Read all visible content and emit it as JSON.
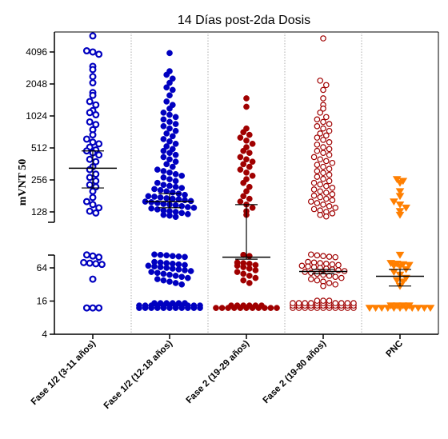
{
  "chart_data": {
    "type": "scatter",
    "title": "14 Días post-2da Dosis",
    "ylabel": "mVNT 50",
    "xlabel": "",
    "yscale": "log2-broken",
    "ylim": [
      4,
      6000
    ],
    "axis_break": [
      90,
      115
    ],
    "grid": false,
    "yticks": [
      {
        "value": 4,
        "label": "4"
      },
      {
        "value": 16,
        "label": "16"
      },
      {
        "value": 64,
        "label": "64"
      },
      {
        "value": 128,
        "label": "128"
      },
      {
        "value": 256,
        "label": "256"
      },
      {
        "value": 512,
        "label": "512"
      },
      {
        "value": 1024,
        "label": "1024"
      },
      {
        "value": 2048,
        "label": "2048"
      },
      {
        "value": 4096,
        "label": "4096"
      }
    ],
    "groups": [
      {
        "label": "Fase 1/2  (3-11 años)",
        "color": "#0000c0",
        "marker": "hollow-circle",
        "geomean": 330,
        "ci_low": 215,
        "ci_high": 480,
        "values": [
          5800,
          4200,
          4100,
          3900,
          3000,
          2800,
          2400,
          2100,
          1700,
          1600,
          1400,
          1300,
          1150,
          1100,
          1050,
          900,
          850,
          760,
          680,
          620,
          580,
          560,
          520,
          490,
          480,
          460,
          440,
          400,
          380,
          340,
          320,
          290,
          270,
          250,
          230,
          220,
          200,
          175,
          160,
          150,
          140,
          130,
          125,
          110,
          105,
          100,
          80,
          78,
          76,
          74,
          40,
          12,
          12,
          12
        ]
      },
      {
        "label": "Fase 1/2 (12-18 años)",
        "color": "#0000c0",
        "marker": "filled-circle",
        "geomean": 160,
        "ci_low": 140,
        "ci_high": 190,
        "values": [
          4000,
          2700,
          2500,
          2300,
          2100,
          1900,
          1800,
          1600,
          1400,
          1300,
          1200,
          1100,
          1050,
          1000,
          950,
          900,
          860,
          820,
          780,
          740,
          700,
          660,
          620,
          590,
          560,
          530,
          500,
          480,
          460,
          440,
          420,
          400,
          380,
          360,
          340,
          320,
          310,
          300,
          290,
          280,
          270,
          260,
          250,
          240,
          230,
          225,
          220,
          215,
          210,
          205,
          200,
          195,
          190,
          185,
          180,
          178,
          175,
          172,
          170,
          168,
          165,
          162,
          160,
          158,
          155,
          152,
          150,
          148,
          145,
          142,
          140,
          138,
          135,
          132,
          130,
          128,
          125,
          122,
          120,
          118,
          115,
          112,
          110,
          108,
          105,
          103,
          101,
          82,
          80,
          78,
          76,
          74,
          72,
          70,
          68,
          66,
          64,
          62,
          60,
          58,
          56,
          54,
          52,
          50,
          48,
          46,
          44,
          42,
          40,
          38,
          36,
          34,
          32,
          12,
          12,
          12,
          12,
          12,
          12,
          12,
          12,
          12,
          12,
          12,
          12,
          12,
          12,
          12,
          12,
          12,
          12,
          12,
          12,
          12,
          12,
          12,
          12,
          12,
          12,
          12,
          12
        ]
      },
      {
        "label": "Fase 2 (19-29 años)",
        "color": "#a00000",
        "marker": "filled-circle",
        "geomean": 100,
        "ci_low": 92,
        "ci_high": 150,
        "values": [
          1500,
          1250,
          780,
          720,
          680,
          640,
          600,
          560,
          520,
          480,
          460,
          420,
          400,
          380,
          360,
          340,
          320,
          300,
          280,
          260,
          240,
          220,
          200,
          180,
          170,
          160,
          150,
          140,
          130,
          120,
          110,
          105,
          80,
          78,
          76,
          72,
          70,
          66,
          62,
          58,
          54,
          50,
          46,
          42,
          38,
          34,
          12,
          12,
          12,
          12,
          12,
          12,
          12,
          12,
          12,
          12,
          12,
          12,
          12,
          12,
          12,
          12,
          12
        ]
      },
      {
        "label": "Fase 2 (19-80 años)",
        "color": "#a00000",
        "marker": "hollow-circle",
        "geomean": 55,
        "ci_low": 50,
        "ci_high": 60,
        "values": [
          5500,
          2200,
          2000,
          1800,
          1500,
          1300,
          1200,
          1100,
          1000,
          950,
          900,
          860,
          820,
          780,
          740,
          700,
          670,
          640,
          610,
          580,
          550,
          520,
          500,
          480,
          460,
          440,
          420,
          400,
          385,
          370,
          355,
          340,
          325,
          310,
          298,
          286,
          274,
          262,
          250,
          240,
          232,
          224,
          216,
          208,
          200,
          194,
          188,
          182,
          176,
          170,
          165,
          160,
          155,
          150,
          145,
          140,
          136,
          132,
          128,
          124,
          120,
          116,
          112,
          108,
          105,
          102,
          100,
          82,
          80,
          78,
          76,
          74,
          72,
          70,
          68,
          66,
          64,
          62,
          60,
          58,
          56,
          54,
          52,
          50,
          48,
          46,
          44,
          42,
          40,
          38,
          36,
          34,
          32,
          30,
          12,
          12,
          12,
          12,
          12,
          12,
          12,
          12,
          12,
          12,
          12,
          12,
          12,
          12,
          12,
          12,
          12,
          12,
          12,
          12,
          12,
          12,
          12,
          12,
          12,
          12,
          12,
          12,
          12,
          12,
          12,
          12,
          12,
          12,
          12,
          12
        ]
      },
      {
        "label": "PNC",
        "color": "#ff7f00",
        "marker": "filled-triangle-down",
        "geomean": 45,
        "ci_low": 30,
        "ci_high": 60,
        "values": [
          260,
          250,
          240,
          200,
          180,
          160,
          150,
          140,
          130,
          120,
          110,
          78,
          76,
          74,
          72,
          70,
          68,
          60,
          54,
          48,
          42,
          38,
          36,
          30,
          12,
          12,
          12,
          12,
          12,
          12,
          12,
          12,
          12,
          12,
          12,
          12,
          12,
          12,
          12
        ]
      }
    ]
  }
}
